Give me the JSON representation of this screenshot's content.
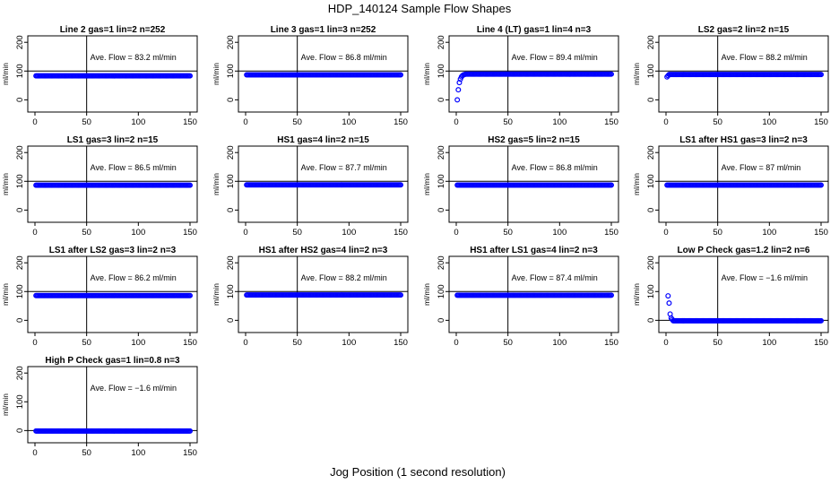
{
  "figure": {
    "title": "HDP_140124  Sample Flow Shapes",
    "xlabel": "Jog Position (1 second resolution)",
    "point_color": "#0000ff"
  },
  "chart_data": [
    {
      "type": "scatter",
      "title": "Line 2 gas=1 lin=2 n=252",
      "ylabel": "ml/min",
      "annotation": "Ave. Flow =  83.2  ml/min",
      "xlim": [
        0,
        150
      ],
      "ylim": [
        -30,
        210
      ],
      "xticks": [
        0,
        50,
        100,
        150
      ],
      "yticks": [
        0,
        100,
        200
      ],
      "hline": 100,
      "vline": 50,
      "start": [],
      "plateau": 83.2,
      "x_range": [
        1,
        150
      ]
    },
    {
      "type": "scatter",
      "title": "Line 3 gas=1 lin=3 n=252",
      "ylabel": "ml/min",
      "annotation": "Ave. Flow =  86.8  ml/min",
      "xlim": [
        0,
        150
      ],
      "ylim": [
        -30,
        210
      ],
      "xticks": [
        0,
        50,
        100,
        150
      ],
      "yticks": [
        0,
        100,
        200
      ],
      "hline": 100,
      "vline": 50,
      "start": [],
      "plateau": 86.8,
      "x_range": [
        1,
        150
      ]
    },
    {
      "type": "scatter",
      "title": "Line 4 (LT) gas=1 lin=4 n=3",
      "ylabel": "ml/min",
      "annotation": "Ave. Flow =  89.4  ml/min",
      "xlim": [
        0,
        150
      ],
      "ylim": [
        -30,
        210
      ],
      "xticks": [
        0,
        50,
        100,
        150
      ],
      "yticks": [
        0,
        100,
        200
      ],
      "hline": 100,
      "vline": 50,
      "start": [
        [
          1,
          0
        ],
        [
          2,
          35
        ],
        [
          3,
          60
        ],
        [
          4,
          72
        ],
        [
          5,
          80
        ],
        [
          6,
          84
        ],
        [
          7,
          87
        ],
        [
          8,
          88
        ]
      ],
      "plateau": 89.4,
      "x_range": [
        9,
        150
      ]
    },
    {
      "type": "scatter",
      "title": "LS2 gas=2 lin=2 n=15",
      "ylabel": "ml/min",
      "annotation": "Ave. Flow =  88.2  ml/min",
      "xlim": [
        0,
        150
      ],
      "ylim": [
        -30,
        210
      ],
      "xticks": [
        0,
        50,
        100,
        150
      ],
      "yticks": [
        0,
        100,
        200
      ],
      "hline": 100,
      "vline": 50,
      "start": [
        [
          1,
          80
        ],
        [
          2,
          84
        ]
      ],
      "plateau": 88.2,
      "x_range": [
        3,
        150
      ]
    },
    {
      "type": "scatter",
      "title": "LS1 gas=3 lin=2 n=15",
      "ylabel": "ml/min",
      "annotation": "Ave. Flow =  86.5  ml/min",
      "xlim": [
        0,
        150
      ],
      "ylim": [
        -30,
        210
      ],
      "xticks": [
        0,
        50,
        100,
        150
      ],
      "yticks": [
        0,
        100,
        200
      ],
      "hline": 100,
      "vline": 50,
      "start": [],
      "plateau": 86.5,
      "x_range": [
        1,
        150
      ]
    },
    {
      "type": "scatter",
      "title": "HS1 gas=4 lin=2 n=15",
      "ylabel": "ml/min",
      "annotation": "Ave. Flow =  87.7  ml/min",
      "xlim": [
        0,
        150
      ],
      "ylim": [
        -30,
        210
      ],
      "xticks": [
        0,
        50,
        100,
        150
      ],
      "yticks": [
        0,
        100,
        200
      ],
      "hline": 100,
      "vline": 50,
      "start": [],
      "plateau": 87.7,
      "x_range": [
        1,
        150
      ]
    },
    {
      "type": "scatter",
      "title": "HS2 gas=5 lin=2 n=15",
      "ylabel": "ml/min",
      "annotation": "Ave. Flow =  86.8  ml/min",
      "xlim": [
        0,
        150
      ],
      "ylim": [
        -30,
        210
      ],
      "xticks": [
        0,
        50,
        100,
        150
      ],
      "yticks": [
        0,
        100,
        200
      ],
      "hline": 100,
      "vline": 50,
      "start": [],
      "plateau": 86.8,
      "x_range": [
        1,
        150
      ]
    },
    {
      "type": "scatter",
      "title": "LS1 after HS1 gas=3 lin=2 n=3",
      "ylabel": "ml/min",
      "annotation": "Ave. Flow =  87  ml/min",
      "xlim": [
        0,
        150
      ],
      "ylim": [
        -30,
        210
      ],
      "xticks": [
        0,
        50,
        100,
        150
      ],
      "yticks": [
        0,
        100,
        200
      ],
      "hline": 100,
      "vline": 50,
      "start": [],
      "plateau": 87,
      "x_range": [
        1,
        150
      ]
    },
    {
      "type": "scatter",
      "title": "LS1 after LS2 gas=3 lin=2 n=3",
      "ylabel": "ml/min",
      "annotation": "Ave. Flow =  86.2  ml/min",
      "xlim": [
        0,
        150
      ],
      "ylim": [
        -30,
        210
      ],
      "xticks": [
        0,
        50,
        100,
        150
      ],
      "yticks": [
        0,
        100,
        200
      ],
      "hline": 100,
      "vline": 50,
      "start": [],
      "plateau": 86.2,
      "x_range": [
        1,
        150
      ]
    },
    {
      "type": "scatter",
      "title": "HS1 after HS2 gas=4 lin=2 n=3",
      "ylabel": "ml/min",
      "annotation": "Ave. Flow =  88.2  ml/min",
      "xlim": [
        0,
        150
      ],
      "ylim": [
        -30,
        210
      ],
      "xticks": [
        0,
        50,
        100,
        150
      ],
      "yticks": [
        0,
        100,
        200
      ],
      "hline": 100,
      "vline": 50,
      "start": [],
      "plateau": 88.2,
      "x_range": [
        1,
        150
      ]
    },
    {
      "type": "scatter",
      "title": "HS1 after LS1 gas=4 lin=2 n=3",
      "ylabel": "ml/min",
      "annotation": "Ave. Flow =  87.4  ml/min",
      "xlim": [
        0,
        150
      ],
      "ylim": [
        -30,
        210
      ],
      "xticks": [
        0,
        50,
        100,
        150
      ],
      "yticks": [
        0,
        100,
        200
      ],
      "hline": 100,
      "vline": 50,
      "start": [],
      "plateau": 87.4,
      "x_range": [
        1,
        150
      ]
    },
    {
      "type": "scatter",
      "title": "Low P Check gas=1.2 lin=2 n=6",
      "ylabel": "ml/min",
      "annotation": "Ave. Flow =  −1.6  ml/min",
      "xlim": [
        0,
        150
      ],
      "ylim": [
        -30,
        210
      ],
      "xticks": [
        0,
        50,
        100,
        150
      ],
      "yticks": [
        0,
        100,
        200
      ],
      "hline": 0,
      "vline": 50,
      "start": [
        [
          2,
          85
        ],
        [
          3,
          60
        ],
        [
          4,
          22
        ],
        [
          5,
          8
        ],
        [
          6,
          3
        ]
      ],
      "plateau": -1.6,
      "x_range": [
        7,
        150
      ]
    },
    {
      "type": "scatter",
      "title": "High P Check gas=1 lin=0.8 n=3",
      "ylabel": "ml/min",
      "annotation": "Ave. Flow =  −1.6  ml/min",
      "xlim": [
        0,
        150
      ],
      "ylim": [
        -30,
        210
      ],
      "xticks": [
        0,
        50,
        100,
        150
      ],
      "yticks": [
        0,
        100,
        200
      ],
      "hline": 0,
      "vline": 50,
      "start": [],
      "plateau": -1.6,
      "x_range": [
        1,
        150
      ]
    }
  ]
}
